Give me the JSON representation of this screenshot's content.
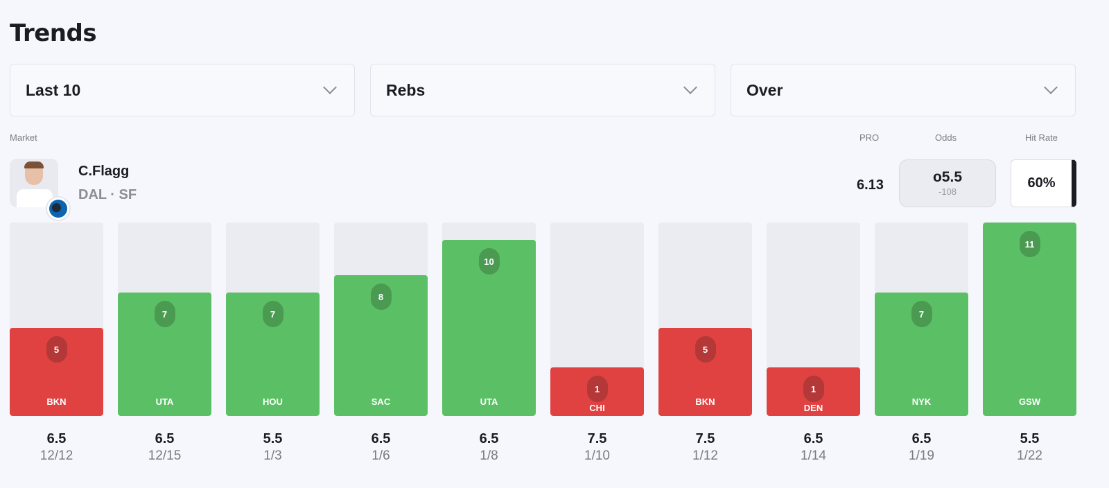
{
  "title": "Trends",
  "filters": [
    {
      "label": "Last 10"
    },
    {
      "label": "Rebs"
    },
    {
      "label": "Over"
    }
  ],
  "headers": {
    "market": "Market",
    "pro": "PRO",
    "odds": "Odds",
    "hit_rate": "Hit Rate"
  },
  "player": {
    "name": "C.Flagg",
    "team": "DAL · SF",
    "pro": "6.13",
    "odds_line": "o5.5",
    "odds_price": "-108",
    "hit_rate": "60%"
  },
  "colors": {
    "hit": "#5bc065",
    "miss": "#e04141",
    "hit_pill": "#4a9a52",
    "miss_pill": "#b43838"
  },
  "chart_data": {
    "type": "bar",
    "max": 11,
    "games": [
      {
        "opp": "BKN",
        "value": 5,
        "line": "6.5",
        "date": "12/12",
        "hit": false
      },
      {
        "opp": "UTA",
        "value": 7,
        "line": "6.5",
        "date": "12/15",
        "hit": true
      },
      {
        "opp": "HOU",
        "value": 7,
        "line": "5.5",
        "date": "1/3",
        "hit": true
      },
      {
        "opp": "SAC",
        "value": 8,
        "line": "6.5",
        "date": "1/6",
        "hit": true
      },
      {
        "opp": "UTA",
        "value": 10,
        "line": "6.5",
        "date": "1/8",
        "hit": true
      },
      {
        "opp": "CHI",
        "value": 1,
        "line": "7.5",
        "date": "1/10",
        "hit": false
      },
      {
        "opp": "BKN",
        "value": 5,
        "line": "7.5",
        "date": "1/12",
        "hit": false
      },
      {
        "opp": "DEN",
        "value": 1,
        "line": "6.5",
        "date": "1/14",
        "hit": false
      },
      {
        "opp": "NYK",
        "value": 7,
        "line": "6.5",
        "date": "1/19",
        "hit": true
      },
      {
        "opp": "GSW",
        "value": 11,
        "line": "5.5",
        "date": "1/22",
        "hit": true
      }
    ]
  }
}
